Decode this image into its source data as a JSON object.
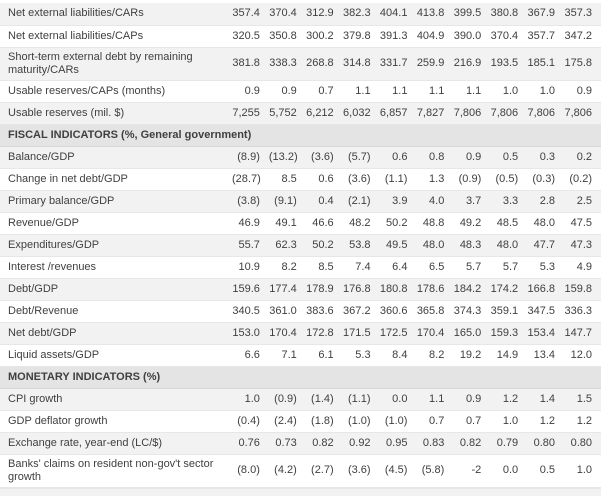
{
  "page": {
    "background": "#ffffff"
  },
  "colors": {
    "stripe_row_bg": "#f2f2f2",
    "plain_row_bg": "#ffffff",
    "section_header_bg": "#e4e4e4",
    "row_border": "#e7e7e7",
    "text": "#3f3f3f"
  },
  "table": {
    "num_value_columns": 10,
    "sections": [
      {
        "rows": [
          {
            "label": "Net external liabilities/CARs",
            "values": [
              "357.4",
              "370.4",
              "312.9",
              "382.3",
              "404.1",
              "413.8",
              "399.5",
              "380.8",
              "367.9",
              "357.3"
            ]
          },
          {
            "label": "Net external liabilities/CAPs",
            "values": [
              "320.5",
              "350.8",
              "300.2",
              "379.8",
              "391.3",
              "404.9",
              "390.0",
              "370.4",
              "357.7",
              "347.2"
            ]
          },
          {
            "label": "Short-term external debt by remaining maturity/CARs",
            "values": [
              "381.8",
              "338.3",
              "268.8",
              "314.8",
              "331.7",
              "259.9",
              "216.9",
              "193.5",
              "185.1",
              "175.8"
            ]
          },
          {
            "label": "Usable reserves/CAPs (months)",
            "values": [
              "0.9",
              "0.9",
              "0.7",
              "1.1",
              "1.1",
              "1.1",
              "1.1",
              "1.0",
              "1.0",
              "0.9"
            ]
          },
          {
            "label": "Usable reserves (mil. $)",
            "values": [
              "7,255",
              "5,752",
              "6,212",
              "6,032",
              "6,857",
              "7,827",
              "7,806",
              "7,806",
              "7,806",
              "7,806"
            ]
          }
        ]
      },
      {
        "header": "FISCAL INDICATORS (%, General government)",
        "rows": [
          {
            "label": "Balance/GDP",
            "values": [
              "(8.9)",
              "(13.2)",
              "(3.6)",
              "(5.7)",
              "0.6",
              "0.8",
              "0.9",
              "0.5",
              "0.3",
              "0.2"
            ]
          },
          {
            "label": "Change in net debt/GDP",
            "values": [
              "(28.7)",
              "8.5",
              "0.6",
              "(3.6)",
              "(1.1)",
              "1.3",
              "(0.9)",
              "(0.5)",
              "(0.3)",
              "(0.2)"
            ]
          },
          {
            "label": "Primary balance/GDP",
            "values": [
              "(3.8)",
              "(9.1)",
              "0.4",
              "(2.1)",
              "3.9",
              "4.0",
              "3.7",
              "3.3",
              "2.8",
              "2.5"
            ]
          },
          {
            "label": "Revenue/GDP",
            "values": [
              "46.9",
              "49.1",
              "46.6",
              "48.2",
              "50.2",
              "48.8",
              "49.2",
              "48.5",
              "48.0",
              "47.5"
            ]
          },
          {
            "label": "Expenditures/GDP",
            "values": [
              "55.7",
              "62.3",
              "50.2",
              "53.8",
              "49.5",
              "48.0",
              "48.3",
              "48.0",
              "47.7",
              "47.3"
            ]
          },
          {
            "label": "Interest /revenues",
            "values": [
              "10.9",
              "8.2",
              "8.5",
              "7.4",
              "6.4",
              "6.5",
              "5.7",
              "5.7",
              "5.3",
              "4.9"
            ]
          },
          {
            "label": "Debt/GDP",
            "values": [
              "159.6",
              "177.4",
              "178.9",
              "176.8",
              "180.8",
              "178.6",
              "184.2",
              "174.2",
              "166.8",
              "159.8"
            ]
          },
          {
            "label": "Debt/Revenue",
            "values": [
              "340.5",
              "361.0",
              "383.6",
              "367.2",
              "360.6",
              "365.8",
              "374.3",
              "359.1",
              "347.5",
              "336.3"
            ]
          },
          {
            "label": "Net debt/GDP",
            "values": [
              "153.0",
              "170.4",
              "172.8",
              "171.5",
              "172.5",
              "170.4",
              "165.0",
              "159.3",
              "153.4",
              "147.7"
            ]
          },
          {
            "label": "Liquid assets/GDP",
            "values": [
              "6.6",
              "7.1",
              "6.1",
              "5.3",
              "8.4",
              "8.2",
              "19.2",
              "14.9",
              "13.4",
              "12.0"
            ]
          }
        ]
      },
      {
        "header": "MONETARY INDICATORS (%)",
        "rows": [
          {
            "label": "CPI growth",
            "values": [
              "1.0",
              "(0.9)",
              "(1.4)",
              "(1.1)",
              "0.0",
              "1.1",
              "0.9",
              "1.2",
              "1.4",
              "1.5"
            ]
          },
          {
            "label": "GDP deflator growth",
            "values": [
              "(0.4)",
              "(2.4)",
              "(1.8)",
              "(1.0)",
              "(1.0)",
              "0.7",
              "0.7",
              "1.0",
              "1.2",
              "1.2"
            ]
          },
          {
            "label": "Exchange rate, year-end (LC/$)",
            "values": [
              "0.76",
              "0.73",
              "0.82",
              "0.92",
              "0.95",
              "0.83",
              "0.82",
              "0.79",
              "0.80",
              "0.80"
            ]
          },
          {
            "label": "Banks' claims on resident non-gov't sector growth",
            "values": [
              "(8.0)",
              "(4.2)",
              "(2.7)",
              "(3.6)",
              "(4.5)",
              "(5.8)",
              "-2",
              "0.0",
              "0.5",
              "1.0"
            ]
          }
        ]
      }
    ]
  }
}
